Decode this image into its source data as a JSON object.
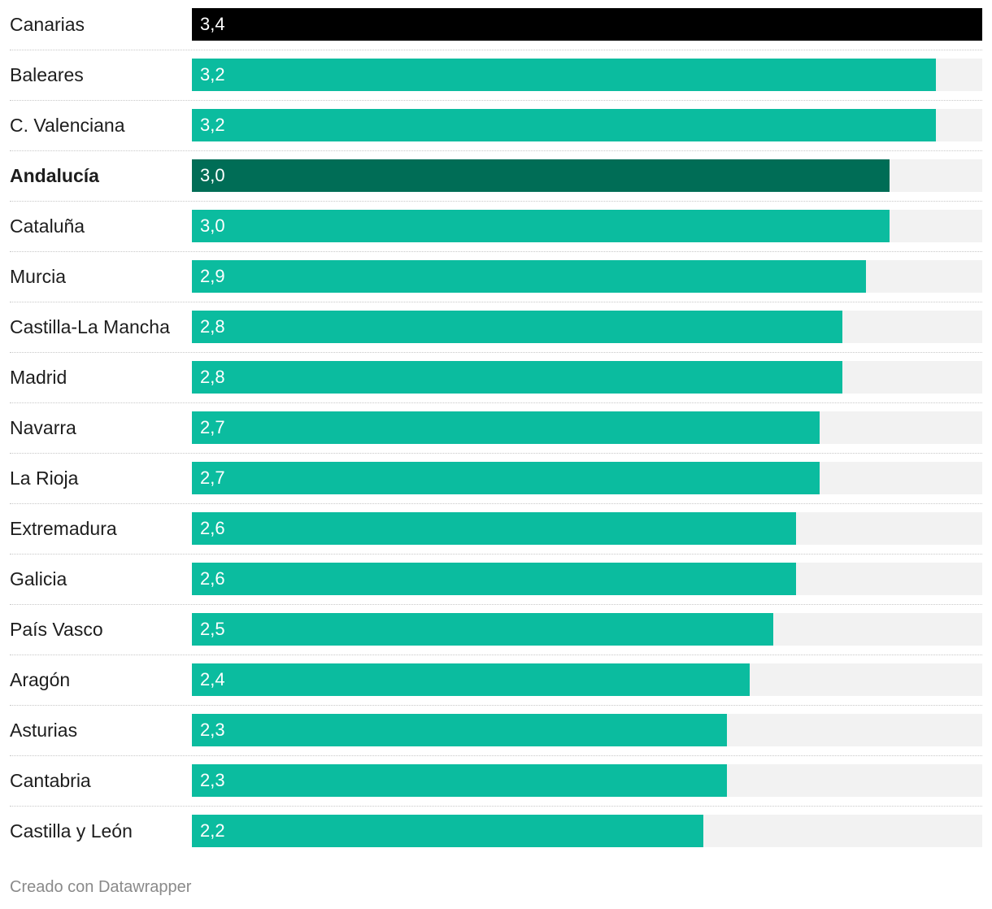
{
  "chart_data": {
    "type": "bar",
    "orientation": "horizontal",
    "categories": [
      "Canarias",
      "Baleares",
      "C. Valenciana",
      "Andalucía",
      "Cataluña",
      "Murcia",
      "Castilla-La Mancha",
      "Madrid",
      "Navarra",
      "La Rioja",
      "Extremadura",
      "Galicia",
      "País Vasco",
      "Aragón",
      "Asturias",
      "Cantabria",
      "Castilla y León"
    ],
    "values": [
      3.4,
      3.2,
      3.2,
      3.0,
      3.0,
      2.9,
      2.8,
      2.8,
      2.7,
      2.7,
      2.6,
      2.6,
      2.5,
      2.4,
      2.3,
      2.3,
      2.2
    ],
    "value_labels": [
      "3,4",
      "3,2",
      "3,2",
      "3,0",
      "3,0",
      "2,9",
      "2,8",
      "2,8",
      "2,7",
      "2,7",
      "2,6",
      "2,6",
      "2,5",
      "2,4",
      "2,3",
      "2,3",
      "2,2"
    ],
    "highlight": {
      "Canarias": "#000000",
      "Andalucía": "#006d56"
    },
    "bold_categories": [
      "Andalucía"
    ],
    "xlim": [
      0,
      3.4
    ],
    "title": "",
    "xlabel": "",
    "ylabel": ""
  },
  "colors": {
    "default_bar": "#0bbc9f",
    "track": "#f2f2f2"
  },
  "footer": {
    "credit": "Creado con Datawrapper"
  }
}
